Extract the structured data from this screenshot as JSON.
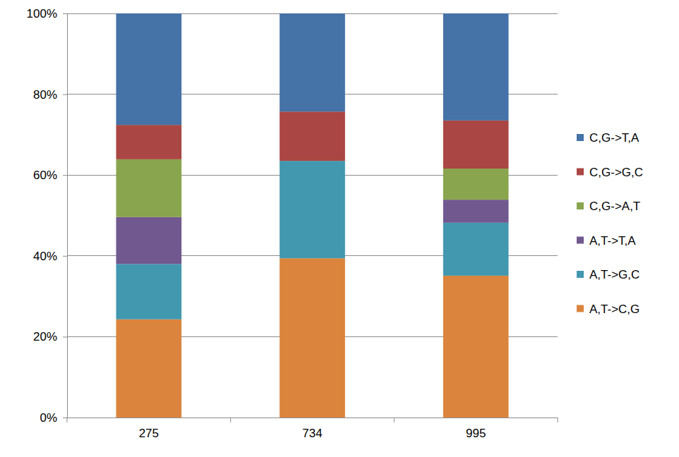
{
  "chart_data": {
    "type": "bar",
    "stacked": true,
    "grid": true,
    "legend": "right",
    "categories": [
      "275",
      "734",
      "995"
    ],
    "series": [
      {
        "name": "A,T->C,G",
        "color": "#db843d",
        "values": [
          24.3,
          39.4,
          35.1
        ]
      },
      {
        "name": "A,T->G,C",
        "color": "#4198af",
        "values": [
          13.7,
          24.1,
          13.1
        ]
      },
      {
        "name": "A,T->T,A",
        "color": "#71588f",
        "values": [
          11.6,
          0,
          5.7
        ]
      },
      {
        "name": "C,G->A,T",
        "color": "#89a54e",
        "values": [
          14.3,
          0,
          7.7
        ]
      },
      {
        "name": "C,G->G,C",
        "color": "#aa4643",
        "values": [
          8.5,
          12.2,
          11.9
        ]
      },
      {
        "name": "C,G->T,A",
        "color": "#4572a7",
        "values": [
          27.6,
          24.3,
          26.5
        ]
      }
    ],
    "ylim": [
      0,
      100
    ],
    "yticks": [
      {
        "value": 0,
        "label": "0%"
      },
      {
        "value": 20,
        "label": "20%"
      },
      {
        "value": 40,
        "label": "40%"
      },
      {
        "value": 60,
        "label": "60%"
      },
      {
        "value": 80,
        "label": "80%"
      },
      {
        "value": 100,
        "label": "100%"
      }
    ]
  }
}
